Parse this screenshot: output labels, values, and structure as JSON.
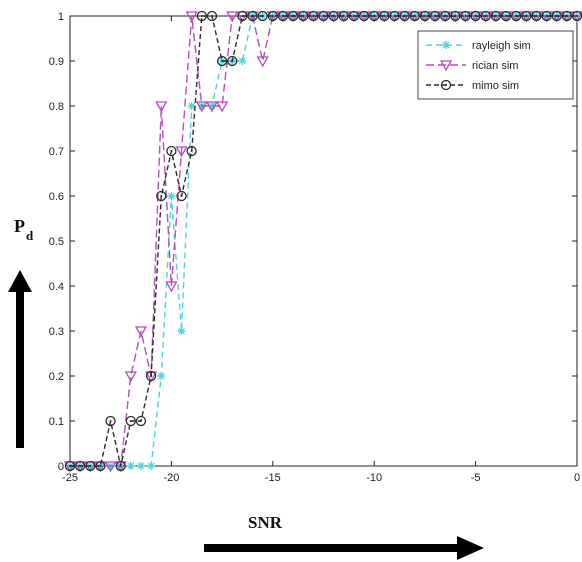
{
  "chart_data": {
    "type": "line",
    "title": "",
    "xlabel": "SNR",
    "ylabel_main": "P",
    "ylabel_sub": "d",
    "xlim": [
      -25,
      0
    ],
    "ylim": [
      0,
      1
    ],
    "xticks": [
      -25,
      -20,
      -15,
      -10,
      -5,
      0
    ],
    "yticks": [
      0,
      0.1,
      0.2,
      0.3,
      0.4,
      0.5,
      0.6,
      0.7,
      0.8,
      0.9,
      1
    ],
    "grid": false,
    "legend_position": "top-right",
    "x": [
      -25,
      -24.5,
      -24,
      -23.5,
      -23,
      -22.5,
      -22,
      -21.5,
      -21,
      -20.5,
      -20,
      -19.5,
      -19,
      -18.5,
      -18,
      -17.5,
      -17,
      -16.5,
      -16,
      -15.5,
      -15,
      -14.5,
      -14,
      -13.5,
      -13,
      -12.5,
      -12,
      -11.5,
      -11,
      -10.5,
      -10,
      -9.5,
      -9,
      -8.5,
      -8,
      -7.5,
      -7,
      -6.5,
      -6,
      -5.5,
      -5,
      -4.5,
      -4,
      -3.5,
      -3,
      -2.5,
      -2,
      -1.5,
      -1,
      -0.5,
      0
    ],
    "series": [
      {
        "name": "rayleigh sim",
        "color": "#4dd4d8",
        "marker": "asterisk",
        "dash": "6,4",
        "values": [
          0,
          0,
          0,
          0,
          0,
          0,
          0,
          0,
          0,
          0.2,
          0.6,
          0.3,
          0.8,
          0.8,
          0.8,
          0.9,
          0.9,
          0.9,
          1,
          1,
          1,
          1,
          1,
          1,
          1,
          1,
          1,
          1,
          1,
          1,
          1,
          1,
          1,
          1,
          1,
          1,
          1,
          1,
          1,
          1,
          1,
          1,
          1,
          1,
          1,
          1,
          1,
          1,
          1,
          1,
          1
        ]
      },
      {
        "name": "rician sim",
        "color": "#b050b8",
        "marker": "triangle-down",
        "dash": "8,4",
        "values": [
          0,
          0,
          0,
          0,
          0,
          0,
          0.2,
          0.3,
          0.2,
          0.8,
          0.4,
          0.7,
          1,
          0.8,
          0.8,
          0.8,
          1,
          1,
          1,
          0.9,
          1,
          1,
          1,
          1,
          1,
          1,
          1,
          1,
          1,
          1,
          1,
          1,
          1,
          1,
          1,
          1,
          1,
          1,
          1,
          1,
          1,
          1,
          1,
          1,
          1,
          1,
          1,
          1,
          1,
          1,
          1
        ]
      },
      {
        "name": "mimo sim",
        "color": "#2b2b2b",
        "marker": "circle-dot",
        "dash": "5,3",
        "values": [
          0,
          0,
          0,
          0,
          0.1,
          0,
          0.1,
          0.1,
          0.2,
          0.6,
          0.7,
          0.6,
          0.7,
          1,
          1,
          0.9,
          0.9,
          1,
          1,
          1,
          1,
          1,
          1,
          1,
          1,
          1,
          1,
          1,
          1,
          1,
          1,
          1,
          1,
          1,
          1,
          1,
          1,
          1,
          1,
          1,
          1,
          1,
          1,
          1,
          1,
          1,
          1,
          1,
          1,
          1,
          1
        ]
      }
    ]
  }
}
